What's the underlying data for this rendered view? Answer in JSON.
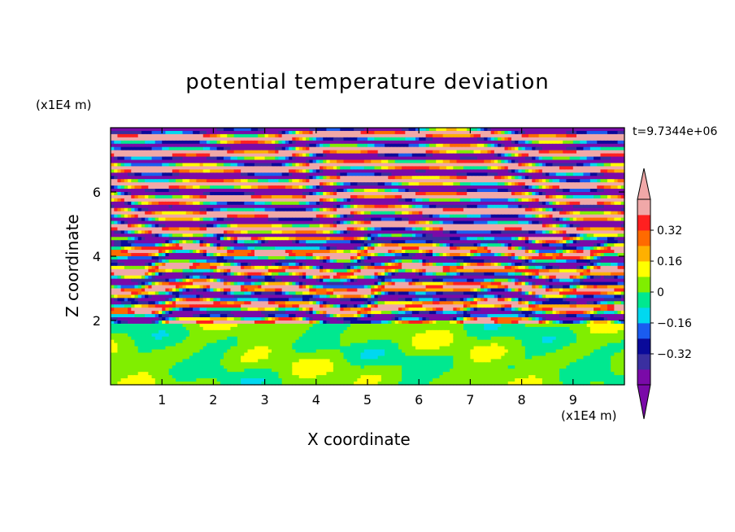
{
  "chart_data": {
    "type": "heatmap",
    "title": "potential temperature deviation",
    "xlabel": "X coordinate",
    "ylabel": "Z coordinate",
    "x_unit": "(x1E4 m)",
    "y_unit": "(x1E4 m)",
    "time_label": "t=9.7344e+06",
    "xlim": [
      0,
      10
    ],
    "ylim": [
      0,
      8
    ],
    "x_ticks": [
      "1",
      "2",
      "3",
      "4",
      "5",
      "6",
      "7",
      "8",
      "9"
    ],
    "y_ticks": [
      "2",
      "4",
      "6"
    ],
    "colorbar": {
      "levels": [
        -0.48,
        -0.4,
        -0.32,
        -0.24,
        -0.16,
        -0.08,
        0,
        0.08,
        0.16,
        0.24,
        0.32,
        0.4,
        0.48
      ],
      "colors": [
        "#7a0aa8",
        "#3a2fa0",
        "#0a0a9a",
        "#1a5cf0",
        "#00d8f0",
        "#00e890",
        "#80ee00",
        "#ffff00",
        "#ffb000",
        "#ff6a00",
        "#ff2020",
        "#f0a8a8"
      ],
      "under_color": "#7a0aa8",
      "over_color": "#f0a8a8",
      "labels": [
        "0.32",
        "0.16",
        "0",
        "-0.16",
        "-0.32"
      ],
      "label_values": [
        0.32,
        0.16,
        0,
        -0.16,
        -0.32
      ]
    }
  }
}
